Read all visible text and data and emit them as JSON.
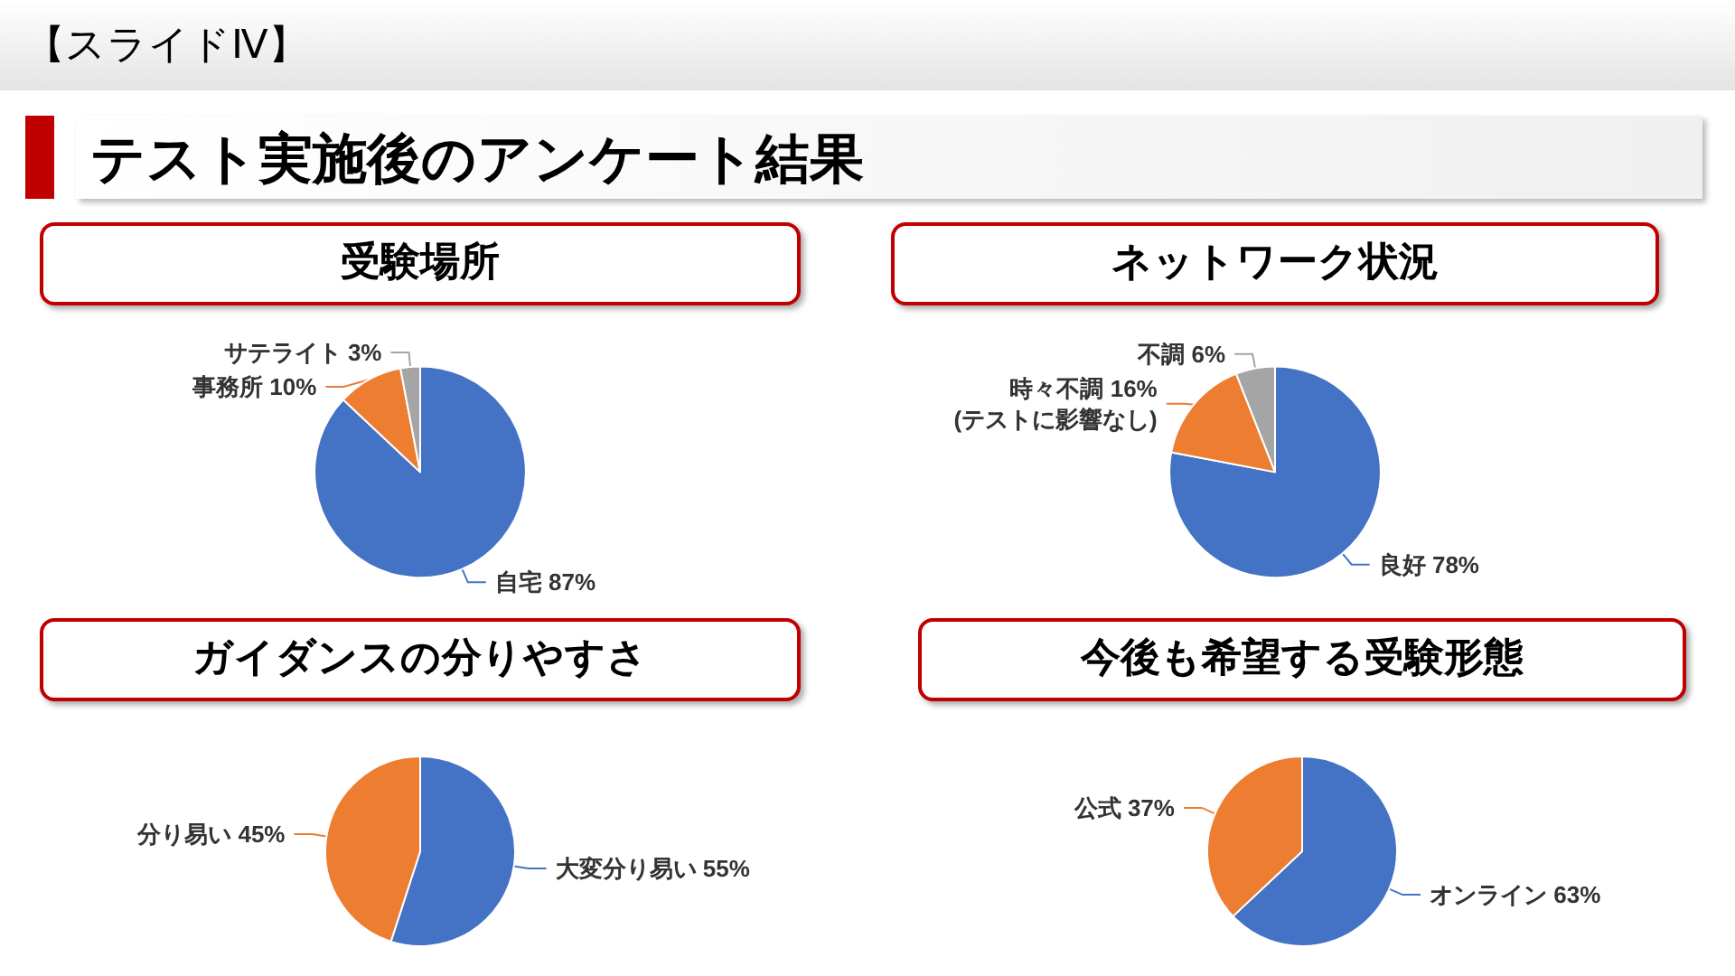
{
  "chart_data": [
    {
      "type": "other",
      "title": "テスト実施後のアンケート結果",
      "annotations": [
        "【スライドⅣ】"
      ]
    },
    {
      "type": "pie",
      "title": "受験場所",
      "categories": [
        "自宅",
        "事務所",
        "サテライト"
      ],
      "values": [
        87,
        10,
        3
      ],
      "value_labels": [
        "87%",
        "10%",
        "3%"
      ],
      "colors": [
        "#4472c4",
        "#ed7d31",
        "#a5a5a5"
      ]
    },
    {
      "type": "pie",
      "title": "ネットワーク状況",
      "categories": [
        "良好",
        "時々不調",
        "不調"
      ],
      "values": [
        78,
        16,
        6
      ],
      "value_labels": [
        "78%",
        "16%",
        "6%"
      ],
      "colors": [
        "#4472c4",
        "#ed7d31",
        "#a5a5a5"
      ],
      "annotations": [
        {
          "text": "(テストに影響なし)",
          "x": "時々不調"
        }
      ]
    },
    {
      "type": "pie",
      "title": "ガイダンスの分りやすさ",
      "categories": [
        "大変分り易い",
        "分り易い"
      ],
      "values": [
        55,
        45
      ],
      "value_labels": [
        "55%",
        "45%"
      ],
      "colors": [
        "#4472c4",
        "#ed7d31"
      ]
    },
    {
      "type": "pie",
      "title": "今後も希望する受験形態",
      "categories": [
        "オンライン",
        "公式"
      ],
      "values": [
        63,
        37
      ],
      "value_labels": [
        "63%",
        "37%"
      ],
      "colors": [
        "#4472c4",
        "#ed7d31"
      ]
    }
  ]
}
